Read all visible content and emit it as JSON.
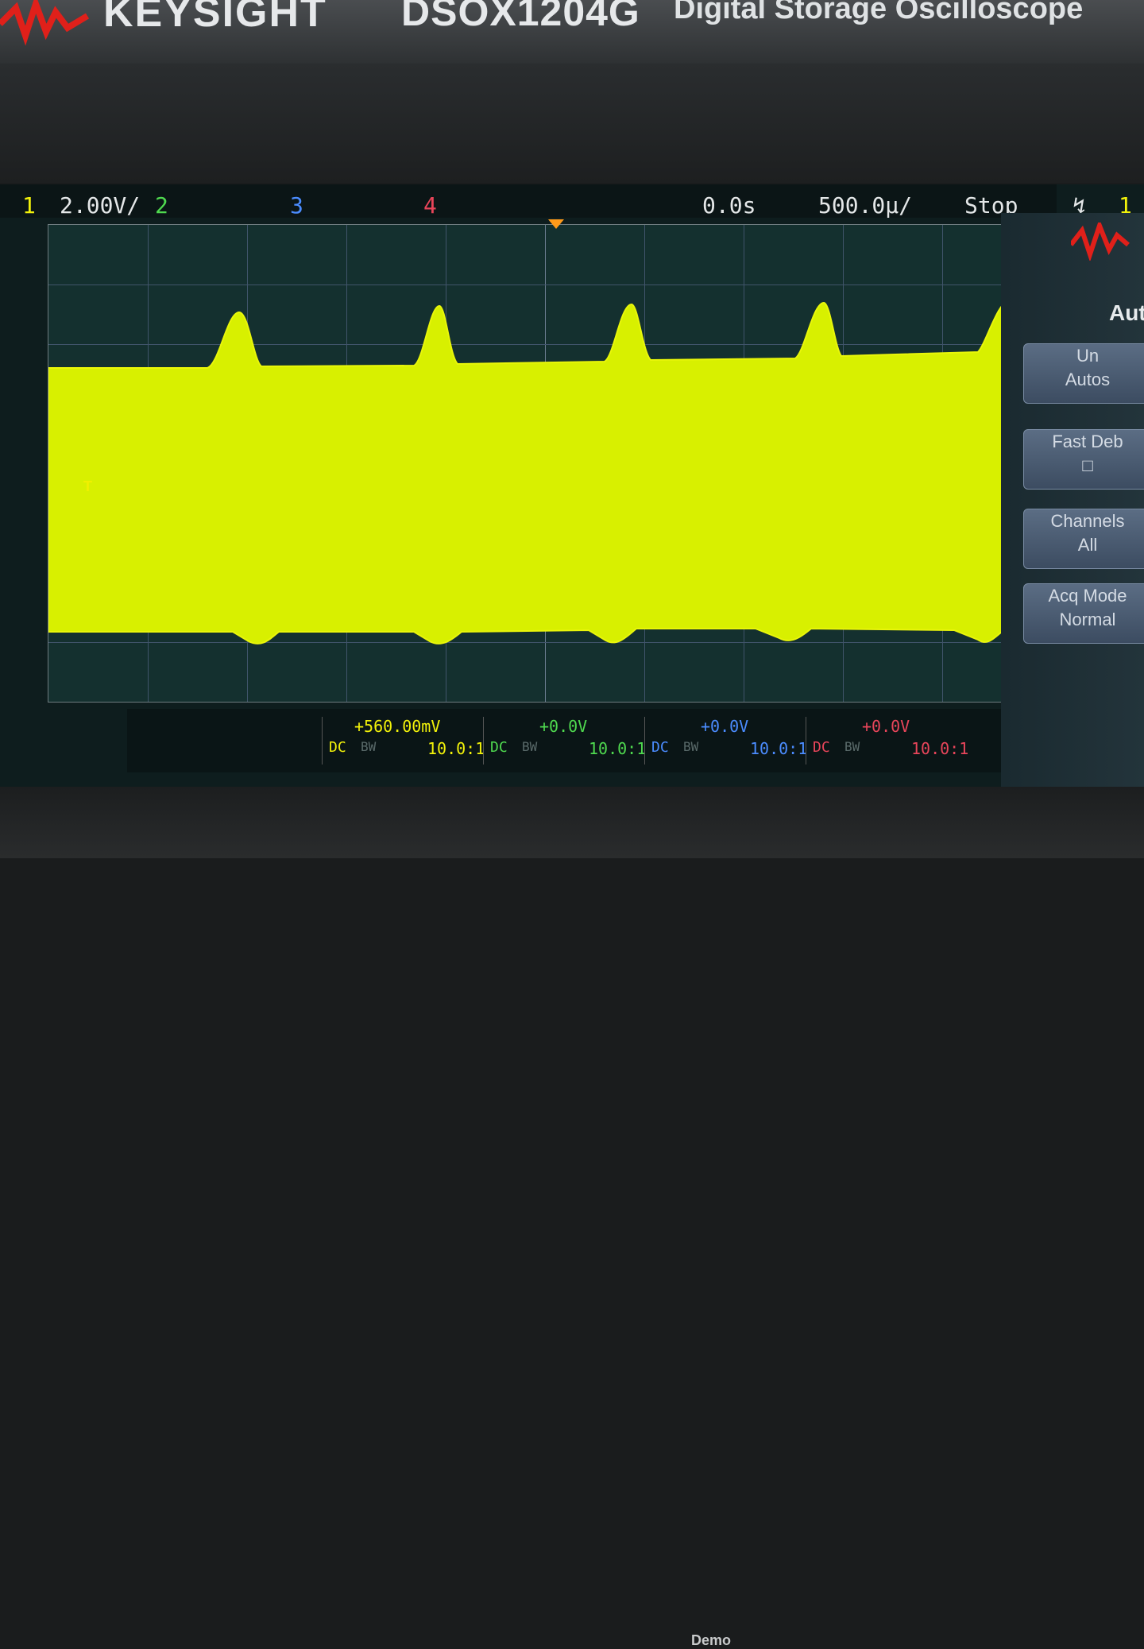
{
  "instrument": {
    "brand": "KEYSIGHT",
    "model": "DSOX1204G",
    "description": "Digital Storage Oscilloscope",
    "softkey_hint": "Demo"
  },
  "status_bar": {
    "ch1_number": "1",
    "ch1_scale": "2.00V/",
    "ch2_number": "2",
    "ch3_number": "3",
    "ch4_number": "4",
    "time_delay": "0.0s",
    "time_scale": "500.0µ/",
    "run_state": "Stop",
    "trigger_icon": "trigger-edge-icon",
    "trigger_source": "1"
  },
  "ground_marker": "T",
  "menu": {
    "title": "Auto",
    "softkeys": [
      {
        "line1": "Un",
        "line2": "Autos"
      },
      {
        "line1": "Fast Deb",
        "line2": ""
      },
      {
        "line1": "Channels",
        "line2": "All"
      },
      {
        "line1": "Acq Mode",
        "line2": "Normal"
      }
    ]
  },
  "channels": [
    {
      "offset": "+560.00mV",
      "coupling": "DC",
      "bw": "BW",
      "probe": "10.0:1",
      "color": "#f2f20a"
    },
    {
      "offset": "+0.0V",
      "coupling": "DC",
      "bw": "BW",
      "probe": "10.0:1",
      "color": "#4fd94f"
    },
    {
      "offset": "+0.0V",
      "coupling": "DC",
      "bw": "BW",
      "probe": "10.0:1",
      "color": "#4b8cff"
    },
    {
      "offset": "+0.0V",
      "coupling": "DC",
      "bw": "BW",
      "probe": "10.0:1",
      "color": "#e8455a"
    }
  ],
  "colors": {
    "ch1": "#f2f20a",
    "ch2": "#4fd94f",
    "ch3": "#4b8cff",
    "ch4": "#e8455a",
    "trigger": "#ff9a1a"
  }
}
